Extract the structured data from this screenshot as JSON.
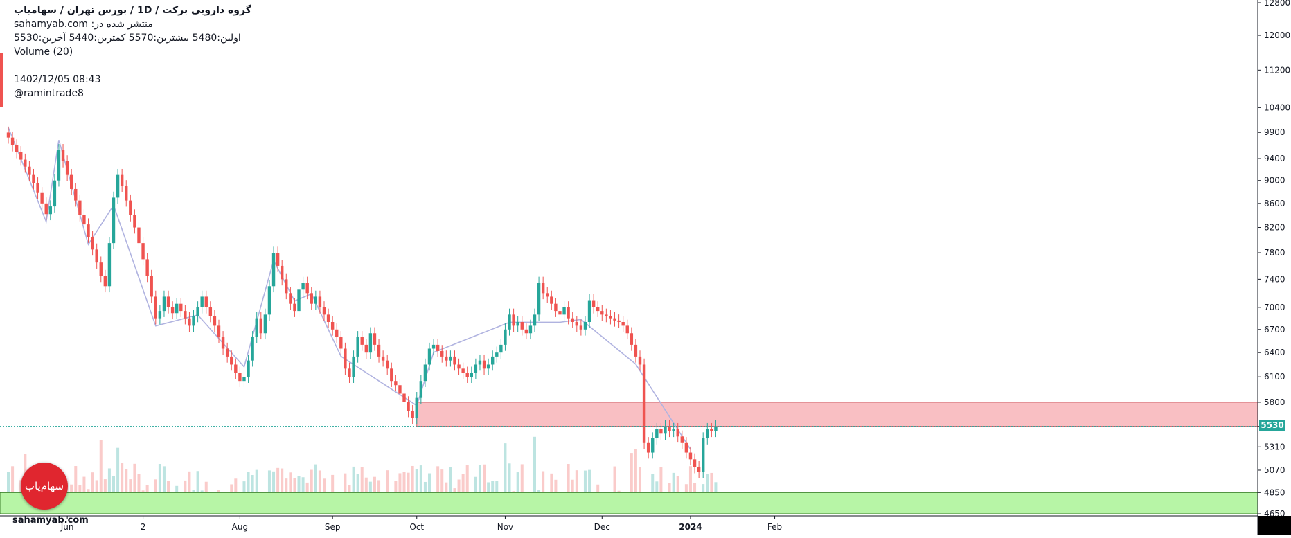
{
  "header": {
    "title": "گروه دارویی برکت  /  1D  /  بورس تهران / سهامیاب",
    "published": "sahamyab.com :منتشر شده در",
    "ohlc": "اولین:5480  بیشترین:5570  کمترین:5440  آخرین:5530",
    "volume": "Volume (20)",
    "date": "1402/12/05 08:43",
    "author": "@ramintrade8"
  },
  "watermark": "sahamyab.com",
  "logo_text": "سهام‌یاب",
  "colors": {
    "up": "#26a69a",
    "down": "#ef5350",
    "resistance": "#f8b4b8",
    "support": "#b7f5a6",
    "pattern": "#b0b3e0"
  },
  "chart_data": {
    "type": "candlestick",
    "x_tick_labels": [
      "Jun",
      "2",
      "Aug",
      "Sep",
      "Oct",
      "Nov",
      "Dec",
      "2024",
      "Feb"
    ],
    "y_tick_labels": [
      4650,
      4850,
      5070,
      5310,
      5530,
      5800,
      6100,
      6400,
      6700,
      7000,
      7400,
      7800,
      8200,
      8600,
      9000,
      9400,
      9900,
      10400,
      11200,
      12000,
      12800
    ],
    "y_scale": "log",
    "last_price": 5530,
    "last": {
      "open": 5480,
      "high": 5570,
      "low": 5440,
      "close": 5530
    },
    "resistance_zone": [
      5530,
      5800
    ],
    "support_zone": [
      4650,
      4850
    ],
    "candles_close": [
      9800,
      9650,
      9520,
      9380,
      9250,
      9100,
      8950,
      8780,
      8600,
      8420,
      8550,
      9000,
      9560,
      9350,
      9100,
      8850,
      8650,
      8400,
      8250,
      8050,
      7850,
      7650,
      7450,
      7300,
      7950,
      8700,
      9100,
      8900,
      8650,
      8400,
      8200,
      7950,
      7700,
      7450,
      7150,
      6850,
      6950,
      7150,
      7000,
      6920,
      7050,
      6950,
      6850,
      6750,
      6880,
      7000,
      7150,
      7000,
      6880,
      6750,
      6600,
      6450,
      6350,
      6250,
      6150,
      6050,
      6100,
      6300,
      6600,
      6850,
      6650,
      6900,
      7300,
      7800,
      7600,
      7400,
      7200,
      7050,
      6950,
      7250,
      7350,
      7200,
      7050,
      7150,
      7000,
      6900,
      6800,
      6700,
      6600,
      6450,
      6200,
      6100,
      6350,
      6600,
      6500,
      6400,
      6650,
      6500,
      6350,
      6300,
      6200,
      6050,
      6000,
      5900,
      5800,
      5700,
      5620,
      5850,
      6050,
      6250,
      6450,
      6500,
      6420,
      6350,
      6300,
      6350,
      6250,
      6200,
      6150,
      6100,
      6150,
      6250,
      6300,
      6200,
      6250,
      6350,
      6400,
      6500,
      6700,
      6900,
      6750,
      6800,
      6700,
      6650,
      6750,
      6900,
      7350,
      7200,
      7150,
      7050,
      6950,
      6900,
      7000,
      6850,
      6800,
      6750,
      6700,
      6800,
      7100,
      7000,
      6950,
      6900,
      6880,
      6850,
      6820,
      6800,
      6750,
      6650,
      6500,
      6350,
      6250,
      5350,
      5250,
      5400,
      5500,
      5450,
      5530,
      5480,
      5500,
      5420,
      5350,
      5250,
      5180,
      5100,
      5050,
      5400,
      5500,
      5480,
      5530
    ]
  }
}
